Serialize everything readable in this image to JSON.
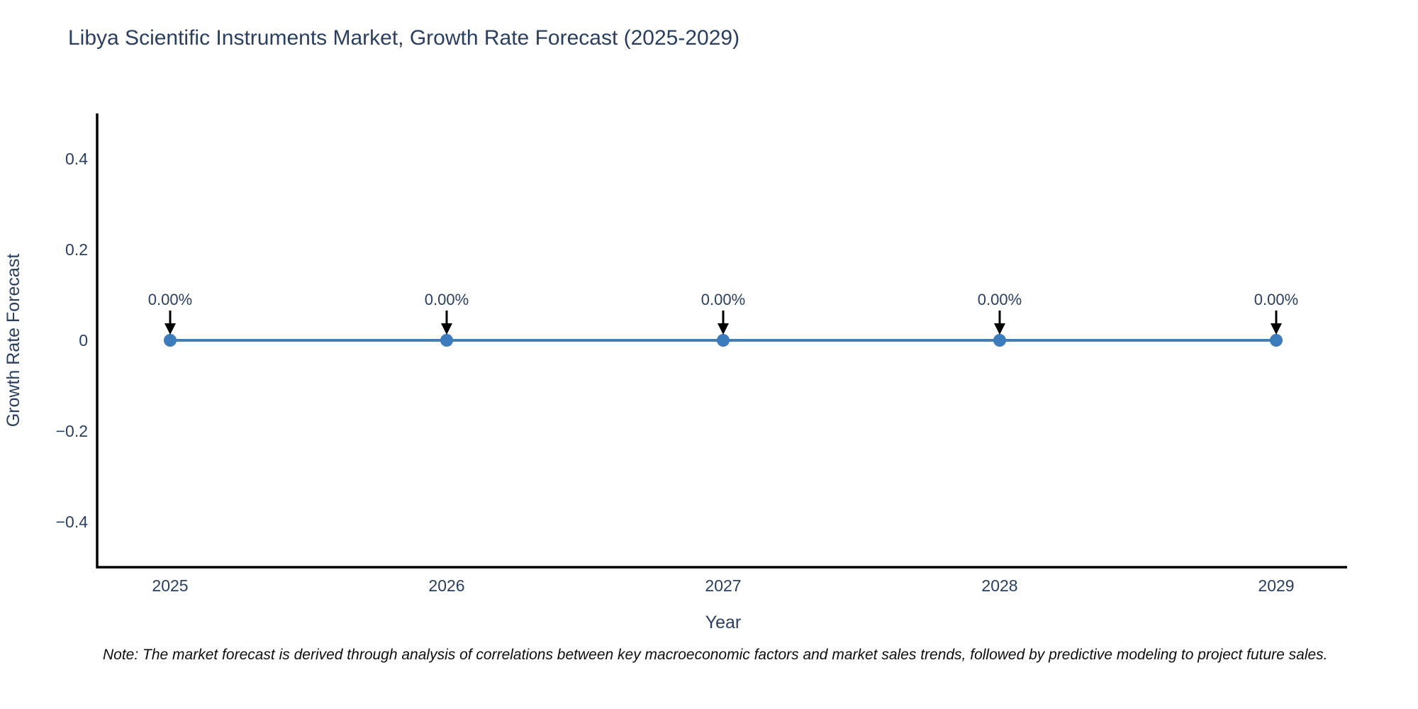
{
  "chart_data": {
    "type": "line",
    "title": "Libya Scientific Instruments Market, Growth Rate Forecast (2025-2029)",
    "xlabel": "Year",
    "ylabel": "Growth Rate Forecast",
    "x": [
      2025,
      2026,
      2027,
      2028,
      2029
    ],
    "series": [
      {
        "name": "Growth Rate Forecast",
        "values": [
          0,
          0,
          0,
          0,
          0
        ]
      }
    ],
    "point_labels": [
      "0.00%",
      "0.00%",
      "0.00%",
      "0.00%",
      "0.00%"
    ],
    "ylim": [
      -0.5,
      0.5
    ],
    "yticks": [
      0.4,
      0.2,
      0,
      -0.2,
      -0.4
    ],
    "ytick_labels": [
      "0.4",
      "0.2",
      "0",
      "−0.2",
      "−0.4"
    ],
    "xtick_labels": [
      "2025",
      "2026",
      "2027",
      "2028",
      "2029"
    ],
    "grid": false,
    "legend": "none",
    "line_color": "#4580b4",
    "marker_color": "#3c7cbc",
    "axis_color": "#000000",
    "arrow_color": "#000000",
    "text_color": "#2a3f5f"
  },
  "footnote": "Note: The market forecast is derived through analysis of correlations between key macroeconomic factors and market sales trends, followed by predictive modeling to project future sales."
}
